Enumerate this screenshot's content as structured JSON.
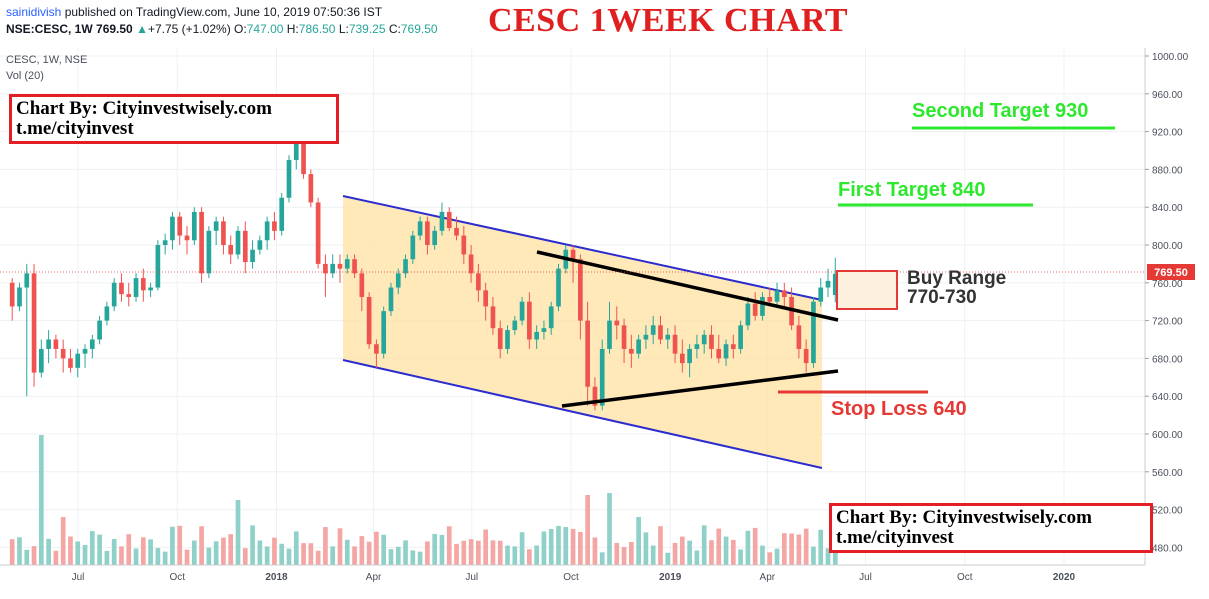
{
  "header": {
    "publisher": "sainidivish",
    "published_text": "published on TradingView.com, June 10, 2019 07:50:36 IST",
    "symbol_line": {
      "symbol": "NSE:CESC, 1W",
      "last": "769.50",
      "change": "+7.75 (+1.02%)",
      "o_label": "O:",
      "o": "747.00",
      "h_label": "H:",
      "h": "786.50",
      "l_label": "L:",
      "l": "739.25",
      "c_label": "C:",
      "c": "769.50"
    },
    "pane_title": "CESC, 1W, NSE",
    "volume_label": "Vol (20)"
  },
  "title": "CESC 1WEEK CHART",
  "credits": [
    {
      "line1": "Chart By: Cityinvestwisely.com",
      "line2": "t.me/cityinvest"
    },
    {
      "line1": "Chart By: Cityinvestwisely.com",
      "line2": "t.me/cityinvest"
    }
  ],
  "annotations": {
    "second_target": "Second Target 930",
    "first_target": "First Target 840",
    "buy_range_line1": "Buy Range",
    "buy_range_line2": "770-730",
    "stop_loss": "Stop Loss 640"
  },
  "colors": {
    "up": "#26a69a",
    "down": "#ef5350",
    "vol_up": "#8fd1c8",
    "vol_down": "#f4a6a4",
    "channel": "#2c2ccf",
    "channel_fill": "#ffe4a8",
    "target": "#2ee82e",
    "stop": "#e53935",
    "price_tag": "#e53935",
    "grid": "#eef0f3"
  },
  "chart_data": {
    "type": "candlestick",
    "title": "CESC 1WEEK CHART",
    "ylim": [
      460,
      1010
    ],
    "price_axis_ticks": [
      "1000.00",
      "960.00",
      "920.00",
      "880.00",
      "840.00",
      "800.00",
      "760.00",
      "720.00",
      "680.00",
      "640.00",
      "600.00",
      "560.00",
      "520.00",
      "480.00"
    ],
    "price_axis_values": [
      1000,
      960,
      920,
      880,
      840,
      800,
      760,
      720,
      680,
      640,
      600,
      560,
      520,
      480
    ],
    "time_axis_labels": [
      "Jul",
      "Oct",
      "2018",
      "Apr",
      "Jul",
      "Oct",
      "2019",
      "Apr",
      "Jul",
      "Oct",
      "2020"
    ],
    "time_axis_dates": [
      "2017-07-01",
      "2017-10-01",
      "2018-01-01",
      "2018-04-01",
      "2018-07-01",
      "2018-10-01",
      "2019-01-01",
      "2019-04-01",
      "2019-07-01",
      "2019-10-01",
      "2020-01-01"
    ],
    "last_price_tag": "769.50",
    "last_price": 769.5,
    "candles_start_date": "2017-05-01",
    "candles_end_date": "2019-06-03",
    "candles": [
      [
        760,
        765,
        720,
        735
      ],
      [
        735,
        760,
        730,
        755
      ],
      [
        755,
        780,
        640,
        770
      ],
      [
        770,
        780,
        650,
        665
      ],
      [
        665,
        700,
        660,
        690
      ],
      [
        690,
        710,
        675,
        700
      ],
      [
        700,
        705,
        680,
        690
      ],
      [
        690,
        700,
        665,
        680
      ],
      [
        680,
        690,
        665,
        670
      ],
      [
        670,
        690,
        660,
        685
      ],
      [
        685,
        695,
        670,
        690
      ],
      [
        690,
        705,
        680,
        700
      ],
      [
        700,
        725,
        695,
        720
      ],
      [
        720,
        740,
        715,
        735
      ],
      [
        735,
        765,
        730,
        760
      ],
      [
        760,
        770,
        740,
        748
      ],
      [
        748,
        760,
        735,
        745
      ],
      [
        745,
        770,
        740,
        765
      ],
      [
        765,
        775,
        740,
        752
      ],
      [
        752,
        760,
        745,
        755
      ],
      [
        755,
        805,
        752,
        800
      ],
      [
        800,
        812,
        790,
        805
      ],
      [
        805,
        835,
        795,
        830
      ],
      [
        830,
        835,
        800,
        810
      ],
      [
        810,
        820,
        790,
        805
      ],
      [
        805,
        840,
        800,
        835
      ],
      [
        835,
        840,
        760,
        770
      ],
      [
        770,
        820,
        765,
        815
      ],
      [
        815,
        830,
        800,
        825
      ],
      [
        825,
        830,
        790,
        800
      ],
      [
        800,
        810,
        780,
        790
      ],
      [
        790,
        820,
        785,
        815
      ],
      [
        815,
        825,
        770,
        782
      ],
      [
        782,
        805,
        775,
        795
      ],
      [
        795,
        810,
        790,
        805
      ],
      [
        805,
        830,
        795,
        825
      ],
      [
        825,
        835,
        805,
        815
      ],
      [
        815,
        855,
        810,
        850
      ],
      [
        850,
        895,
        845,
        890
      ],
      [
        890,
        925,
        880,
        910
      ],
      [
        910,
        915,
        870,
        875
      ],
      [
        875,
        880,
        840,
        845
      ],
      [
        845,
        850,
        775,
        780
      ],
      [
        780,
        790,
        745,
        770
      ],
      [
        770,
        790,
        765,
        780
      ],
      [
        780,
        790,
        760,
        775
      ],
      [
        775,
        790,
        770,
        785
      ],
      [
        785,
        790,
        765,
        770
      ],
      [
        770,
        775,
        730,
        745
      ],
      [
        745,
        750,
        690,
        695
      ],
      [
        695,
        700,
        670,
        685
      ],
      [
        685,
        735,
        680,
        730
      ],
      [
        730,
        760,
        725,
        755
      ],
      [
        755,
        775,
        748,
        770
      ],
      [
        770,
        790,
        765,
        785
      ],
      [
        785,
        815,
        780,
        810
      ],
      [
        810,
        830,
        805,
        825
      ],
      [
        825,
        830,
        790,
        800
      ],
      [
        800,
        820,
        795,
        815
      ],
      [
        815,
        845,
        810,
        835
      ],
      [
        835,
        840,
        815,
        818
      ],
      [
        818,
        830,
        805,
        810
      ],
      [
        810,
        820,
        780,
        790
      ],
      [
        790,
        800,
        760,
        770
      ],
      [
        770,
        780,
        740,
        752
      ],
      [
        752,
        760,
        720,
        735
      ],
      [
        735,
        745,
        705,
        712
      ],
      [
        712,
        720,
        680,
        690
      ],
      [
        690,
        715,
        685,
        710
      ],
      [
        710,
        725,
        705,
        720
      ],
      [
        720,
        745,
        715,
        740
      ],
      [
        740,
        750,
        690,
        700
      ],
      [
        700,
        715,
        690,
        708
      ],
      [
        708,
        720,
        700,
        712
      ],
      [
        712,
        740,
        705,
        735
      ],
      [
        735,
        780,
        730,
        775
      ],
      [
        775,
        800,
        770,
        795
      ],
      [
        795,
        800,
        760,
        785
      ],
      [
        785,
        790,
        700,
        720
      ],
      [
        720,
        740,
        630,
        650
      ],
      [
        650,
        660,
        625,
        630
      ],
      [
        630,
        700,
        625,
        690
      ],
      [
        690,
        740,
        685,
        720
      ],
      [
        720,
        735,
        700,
        715
      ],
      [
        715,
        722,
        675,
        690
      ],
      [
        690,
        705,
        670,
        685
      ],
      [
        685,
        705,
        680,
        700
      ],
      [
        700,
        715,
        690,
        705
      ],
      [
        705,
        725,
        695,
        715
      ],
      [
        715,
        725,
        695,
        700
      ],
      [
        700,
        712,
        690,
        705
      ],
      [
        705,
        715,
        675,
        685
      ],
      [
        685,
        700,
        665,
        675
      ],
      [
        675,
        695,
        660,
        690
      ],
      [
        690,
        705,
        680,
        695
      ],
      [
        695,
        710,
        685,
        705
      ],
      [
        705,
        715,
        680,
        690
      ],
      [
        690,
        705,
        675,
        680
      ],
      [
        680,
        700,
        672,
        695
      ],
      [
        695,
        705,
        680,
        690
      ],
      [
        690,
        720,
        685,
        715
      ],
      [
        715,
        745,
        710,
        738
      ],
      [
        738,
        750,
        720,
        725
      ],
      [
        725,
        750,
        720,
        745
      ],
      [
        745,
        755,
        735,
        740
      ],
      [
        740,
        760,
        735,
        752
      ],
      [
        752,
        760,
        735,
        745
      ],
      [
        745,
        755,
        710,
        715
      ],
      [
        715,
        725,
        680,
        690
      ],
      [
        690,
        700,
        665,
        675
      ],
      [
        675,
        745,
        670,
        740
      ],
      [
        740,
        765,
        735,
        755
      ],
      [
        755,
        775,
        745,
        762
      ],
      [
        747,
        786.5,
        739.25,
        769.5
      ]
    ]
  }
}
